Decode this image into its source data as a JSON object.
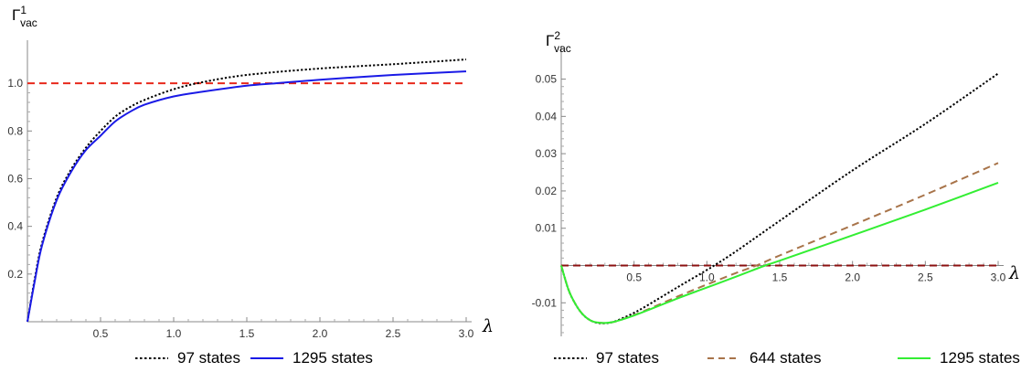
{
  "chart_data": [
    {
      "type": "line",
      "ylabel": {
        "main": "Γ",
        "sup": "1",
        "sub": "vac"
      },
      "xlabel": "λ",
      "xlim": [
        0,
        3.0
      ],
      "ylim": [
        0,
        1.15
      ],
      "xticks": [
        0.5,
        1.0,
        1.5,
        2.0,
        2.5,
        3.0
      ],
      "xtick_labels": [
        "0.5",
        "1.0",
        "1.5",
        "2.0",
        "2.5",
        "3.0"
      ],
      "yticks": [
        0.2,
        0.4,
        0.6,
        0.8,
        1.0
      ],
      "ytick_labels": [
        "0.2",
        "0.4",
        "0.6",
        "0.8",
        "1.0"
      ],
      "reference_lines": [
        {
          "y": 1.0,
          "color": "#e8291c",
          "style": "dashed"
        }
      ],
      "series": [
        {
          "name": "97 states",
          "color": "#000000",
          "style": "dotted",
          "x": [
            0,
            0.05,
            0.1,
            0.2,
            0.3,
            0.4,
            0.5,
            0.6,
            0.7,
            0.8,
            1.0,
            1.2,
            1.5,
            2.0,
            2.5,
            3.0
          ],
          "y": [
            0,
            0.18,
            0.33,
            0.52,
            0.64,
            0.73,
            0.8,
            0.86,
            0.9,
            0.93,
            0.975,
            1.005,
            1.035,
            1.062,
            1.08,
            1.1
          ]
        },
        {
          "name": "1295 states",
          "color": "#1a1ae6",
          "style": "solid",
          "x": [
            0,
            0.05,
            0.1,
            0.2,
            0.3,
            0.4,
            0.5,
            0.6,
            0.7,
            0.8,
            1.0,
            1.2,
            1.5,
            1.7,
            2.0,
            2.5,
            3.0
          ],
          "y": [
            0,
            0.17,
            0.32,
            0.51,
            0.63,
            0.72,
            0.78,
            0.84,
            0.88,
            0.91,
            0.945,
            0.965,
            0.99,
            1.0,
            1.015,
            1.035,
            1.05
          ]
        }
      ],
      "legend": "bottom"
    },
    {
      "type": "line",
      "ylabel": {
        "main": "Γ",
        "sup": "2",
        "sub": "vac"
      },
      "xlabel": "λ",
      "xlim": [
        0,
        3.0
      ],
      "ylim": [
        -0.019,
        0.057
      ],
      "xticks": [
        0.5,
        1.0,
        1.5,
        2.0,
        2.5,
        3.0
      ],
      "xtick_labels": [
        "0.5",
        "1.0",
        "1.5",
        "2.0",
        "2.5",
        "3.0"
      ],
      "yticks": [
        -0.01,
        0.01,
        0.02,
        0.03,
        0.04,
        0.05
      ],
      "ytick_labels": [
        "-0.01",
        "0.01",
        "0.02",
        "0.03",
        "0.04",
        "0.05"
      ],
      "reference_lines": [
        {
          "y": 0.0,
          "color": "#8b1010",
          "style": "dashed"
        }
      ],
      "series": [
        {
          "name": "97 states",
          "color": "#000000",
          "style": "dotted",
          "x": [
            0,
            0.05,
            0.1,
            0.15,
            0.2,
            0.25,
            0.3,
            0.35,
            0.4,
            0.5,
            0.6,
            0.8,
            1.0,
            1.05,
            1.2,
            1.5,
            2.0,
            2.5,
            3.0
          ],
          "y": [
            0,
            -0.0065,
            -0.0105,
            -0.0132,
            -0.0147,
            -0.0154,
            -0.0155,
            -0.0152,
            -0.0145,
            -0.0127,
            -0.0105,
            -0.0058,
            -0.0012,
            0.0,
            0.0038,
            0.012,
            0.0255,
            0.038,
            0.0515
          ]
        },
        {
          "name": "644 states",
          "color": "#a8744a",
          "style": "dashed",
          "x": [
            0,
            0.05,
            0.1,
            0.15,
            0.2,
            0.25,
            0.3,
            0.35,
            0.4,
            0.5,
            0.6,
            0.8,
            1.0,
            1.2,
            1.34,
            1.5,
            2.0,
            2.5,
            3.0
          ],
          "y": [
            0,
            -0.0065,
            -0.0105,
            -0.0132,
            -0.0147,
            -0.0153,
            -0.0154,
            -0.0152,
            -0.0147,
            -0.0133,
            -0.0117,
            -0.0083,
            -0.0051,
            -0.002,
            0.0,
            0.0027,
            0.0108,
            0.019,
            0.0275
          ]
        },
        {
          "name": "1295 states",
          "color": "#33ee33",
          "style": "solid",
          "x": [
            0,
            0.05,
            0.1,
            0.15,
            0.2,
            0.25,
            0.3,
            0.35,
            0.4,
            0.5,
            0.6,
            0.8,
            1.0,
            1.2,
            1.4,
            1.5,
            2.0,
            2.5,
            3.0
          ],
          "y": [
            0,
            -0.0065,
            -0.0105,
            -0.0132,
            -0.0147,
            -0.0153,
            -0.0154,
            -0.0152,
            -0.0147,
            -0.0134,
            -0.0119,
            -0.0088,
            -0.0059,
            -0.003,
            0.0,
            0.0013,
            0.0081,
            0.015,
            0.0222
          ]
        }
      ],
      "legend": "bottom"
    }
  ]
}
